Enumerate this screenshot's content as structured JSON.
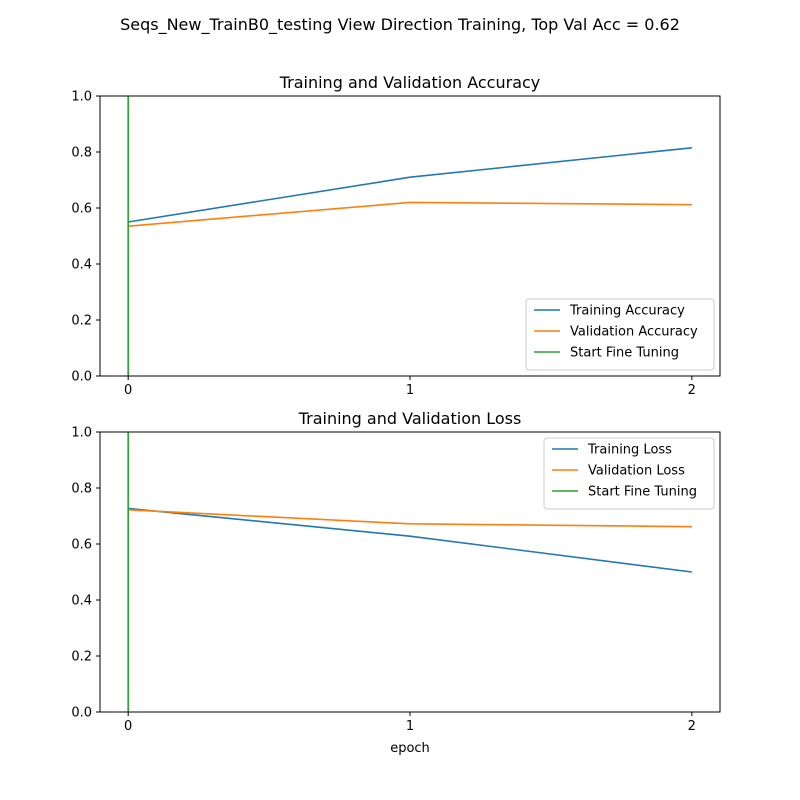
{
  "figure": {
    "title": "Seqs_New_TrainB0_testing View Direction Training, Top Val Acc = 0.62"
  },
  "colors": {
    "blue": "#1f77b4",
    "orange": "#ff7f0e",
    "green": "#2ca02c"
  },
  "chart_data": [
    {
      "type": "line",
      "title": "Training and Validation Accuracy",
      "xlabel": "",
      "ylabel": "",
      "x": [
        0,
        1,
        2
      ],
      "xlim": [
        -0.1,
        2.1
      ],
      "ylim": [
        0.0,
        1.0
      ],
      "xticks": [
        0,
        1,
        2
      ],
      "yticks": [
        0.0,
        0.2,
        0.4,
        0.6,
        0.8,
        1.0
      ],
      "ytick_labels": [
        "0.0",
        "0.2",
        "0.4",
        "0.6",
        "0.8",
        "1.0"
      ],
      "grid": false,
      "legend_position": "lower-right",
      "series": [
        {
          "name": "Training Accuracy",
          "color": "blue",
          "values": [
            0.55,
            0.71,
            0.815
          ]
        },
        {
          "name": "Validation Accuracy",
          "color": "orange",
          "values": [
            0.535,
            0.62,
            0.612
          ]
        }
      ],
      "vline": {
        "name": "Start Fine Tuning",
        "color": "green",
        "x": 0
      }
    },
    {
      "type": "line",
      "title": "Training and Validation Loss",
      "xlabel": "epoch",
      "ylabel": "",
      "x": [
        0,
        1,
        2
      ],
      "xlim": [
        -0.1,
        2.1
      ],
      "ylim": [
        0.0,
        1.0
      ],
      "xticks": [
        0,
        1,
        2
      ],
      "yticks": [
        0.0,
        0.2,
        0.4,
        0.6,
        0.8,
        1.0
      ],
      "ytick_labels": [
        "0.0",
        "0.2",
        "0.4",
        "0.6",
        "0.8",
        "1.0"
      ],
      "grid": false,
      "legend_position": "upper-right",
      "series": [
        {
          "name": "Training Loss",
          "color": "blue",
          "values": [
            0.727,
            0.628,
            0.5
          ]
        },
        {
          "name": "Validation Loss",
          "color": "orange",
          "values": [
            0.722,
            0.672,
            0.662
          ]
        }
      ],
      "vline": {
        "name": "Start Fine Tuning",
        "color": "green",
        "x": 0
      }
    }
  ]
}
